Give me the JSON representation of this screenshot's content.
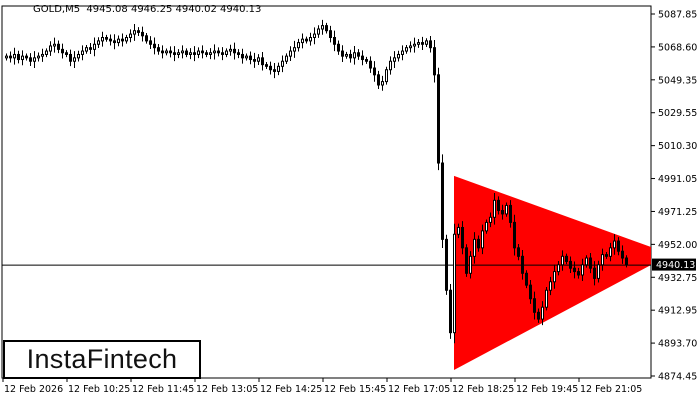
{
  "header": {
    "symbol": "GOLD,M5",
    "ohlc": "4945.08 4946.25 4940.02 4940.13"
  },
  "logo": "InstaFintech",
  "colors": {
    "pattern": "#ff0000",
    "bull_body": "#ffffff",
    "bear_body": "#000000",
    "candle_outline": "#000000",
    "price_label_bg": "#000000"
  },
  "chart_data": {
    "type": "candlestick",
    "timeframe": "M5",
    "ylim": [
      4874.45,
      5087.85
    ],
    "grid": false,
    "y_ticks": [
      "5087.85",
      "5068.60",
      "5049.35",
      "5029.55",
      "5010.30",
      "4991.05",
      "4971.25",
      "4952.00",
      "4932.75",
      "4912.95",
      "4893.70",
      "4874.45"
    ],
    "x_ticks": [
      "12 Feb 2026",
      "12 Feb 10:25",
      "12 Feb 11:45",
      "12 Feb 13:05",
      "12 Feb 14:25",
      "12 Feb 15:45",
      "12 Feb 17:05",
      "12 Feb 18:25",
      "12 Feb 19:45",
      "12 Feb 21:05"
    ],
    "current_price": "4940.13",
    "closes": [
      5063,
      5062,
      5064,
      5061,
      5063,
      5062,
      5060,
      5062,
      5063,
      5064,
      5066,
      5069,
      5070,
      5067,
      5065,
      5064,
      5060,
      5062,
      5064,
      5066,
      5068,
      5067,
      5070,
      5072,
      5074,
      5073,
      5072,
      5071,
      5073,
      5072,
      5074,
      5076,
      5078,
      5077,
      5075,
      5072,
      5070,
      5068,
      5066,
      5065,
      5066,
      5065,
      5064,
      5065,
      5066,
      5064,
      5065,
      5064,
      5066,
      5065,
      5064,
      5065,
      5066,
      5065,
      5064,
      5066,
      5067,
      5065,
      5064,
      5062,
      5063,
      5061,
      5060,
      5062,
      5058,
      5057,
      5055,
      5054,
      5057,
      5060,
      5063,
      5066,
      5068,
      5071,
      5073,
      5072,
      5074,
      5076,
      5079,
      5081,
      5078,
      5074,
      5070,
      5066,
      5063,
      5064,
      5062,
      5065,
      5063,
      5061,
      5060,
      5056,
      5052,
      5046,
      5048,
      5055,
      5060,
      5062,
      5064,
      5066,
      5068,
      5069,
      5070,
      5071,
      5070,
      5072,
      5068,
      5052,
      5000,
      4955,
      4925,
      4900,
      4958,
      4962,
      4950,
      4935,
      4945,
      4955,
      4950,
      4960,
      4965,
      4968,
      4978,
      4972,
      4970,
      4975,
      4965,
      4950,
      4945,
      4935,
      4928,
      4920,
      4912,
      4908,
      4915,
      4925,
      4930,
      4936,
      4940,
      4945,
      4942,
      4938,
      4936,
      4934,
      4940,
      4944,
      4938,
      4932,
      4940,
      4946,
      4945,
      4950,
      4954,
      4948,
      4944,
      4940.13
    ],
    "pattern": {
      "type": "symmetrical-triangle",
      "start_time": "12 Feb 18:25",
      "start_upper": 4992.4,
      "start_lower": 4878.0,
      "end_upper": 4950.5,
      "end_lower": 4939.9
    }
  }
}
